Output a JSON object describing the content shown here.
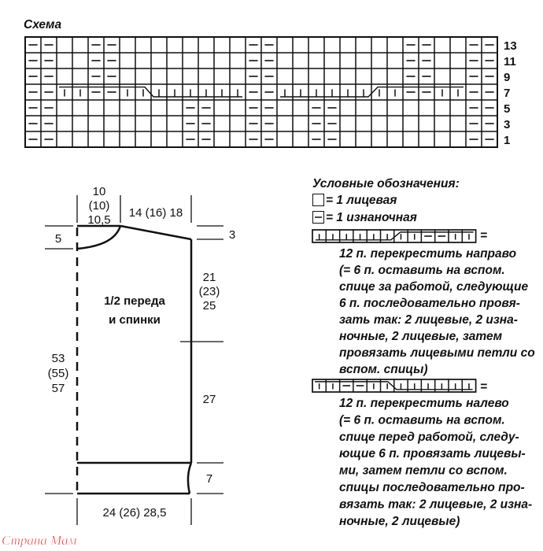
{
  "chart_title": "Схема",
  "pattern": {
    "columns": 30,
    "row_labels": [
      "13",
      "11",
      "9",
      "7",
      "5",
      "3",
      "1"
    ],
    "rows": [
      "--..--........--........--..--",
      "--..--........--........--..--",
      "--..--........--........--..--",
      "--vv--vvuuuuuu--uuuuuuvv--vv--",
      "--........--..--..--........--",
      "--........--..--..--........--",
      "--........--..--..--........--"
    ],
    "cables": [
      {
        "row_label": "7",
        "start_col": 3,
        "span": 12,
        "direction": "left"
      },
      {
        "row_label": "7",
        "start_col": 17,
        "span": 12,
        "direction": "right"
      }
    ]
  },
  "schematic": {
    "label_line1": "1/2 переда",
    "label_line2": "и спинки",
    "neck_width": [
      "10",
      "(10)",
      "10,5"
    ],
    "shoulder_width": "14 (16) 18",
    "neck_depth": "5",
    "shoulder_drop": "3",
    "armhole_depth": [
      "21",
      "(23)",
      "25"
    ],
    "side_length": "27",
    "total_length": [
      "53",
      "(55)",
      "57"
    ],
    "hem_depth": "7",
    "half_width": "24 (26) 28,5"
  },
  "legend": {
    "title": "Условные обозначения:",
    "knit": "= 1 лицевая",
    "purl": "= 1 изнаночная",
    "cable_right": {
      "symbol": "uuuuuuvv--vv",
      "equals": "=",
      "lines": [
        "12 п. перекрестить направо",
        "(= 6 п. оставить на вспом.",
        "спице за работой, следующие",
        "6 п. последовательно провя-",
        "зать так: 2 лицевые, 2 изна-",
        "ночные, 2 лицевые, затем",
        "провязать лицевыми петли со",
        "вспом. спицы)"
      ]
    },
    "cable_left": {
      "symbol": "vv--vvuuuuuu",
      "equals": "=",
      "lines": [
        "12 п. перекрестить налево",
        "(= 6 п. оставить на вспом.",
        "спице перед работой, следу-",
        "ющие 6 п. провязать лицевы-",
        "ми, затем петли со вспом.",
        "спицы последовательно про-",
        "вязать так: 2 лицевые, 2 изна-",
        "ночные, 2 лицевые)"
      ]
    }
  },
  "watermark": "Страна Мам",
  "colors": {
    "ink": "#111111",
    "watermark": "#e0302f"
  }
}
